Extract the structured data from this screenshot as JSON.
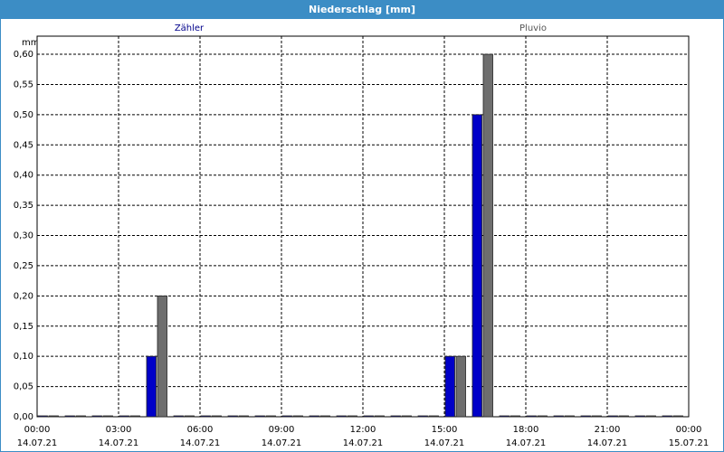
{
  "chart_data": {
    "type": "bar",
    "title": "Niederschlag [mm]",
    "y_unit": "mm",
    "x": [
      0,
      1,
      2,
      3,
      4,
      5,
      6,
      7,
      8,
      9,
      10,
      11,
      12,
      13,
      14,
      15,
      16,
      17,
      18,
      19,
      20,
      21,
      22,
      23
    ],
    "xlim": [
      0,
      24
    ],
    "xticks": [
      {
        "value": 0,
        "label": [
          "00:00",
          "14.07.21"
        ]
      },
      {
        "value": 3,
        "label": [
          "03:00",
          "14.07.21"
        ]
      },
      {
        "value": 6,
        "label": [
          "06:00",
          "14.07.21"
        ]
      },
      {
        "value": 9,
        "label": [
          "09:00",
          "14.07.21"
        ]
      },
      {
        "value": 12,
        "label": [
          "12:00",
          "14.07.21"
        ]
      },
      {
        "value": 15,
        "label": [
          "15:00",
          "14.07.21"
        ]
      },
      {
        "value": 18,
        "label": [
          "18:00",
          "14.07.21"
        ]
      },
      {
        "value": 21,
        "label": [
          "21:00",
          "14.07.21"
        ]
      },
      {
        "value": 24,
        "label": [
          "00:00",
          "15.07.21"
        ]
      }
    ],
    "ylim": [
      0,
      0.63
    ],
    "yticks": [
      {
        "value": 0,
        "label": "0,00"
      },
      {
        "value": 0.05,
        "label": "0,05"
      },
      {
        "value": 0.1,
        "label": "0,10"
      },
      {
        "value": 0.15,
        "label": "0,15"
      },
      {
        "value": 0.2,
        "label": "0,20"
      },
      {
        "value": 0.25,
        "label": "0,25"
      },
      {
        "value": 0.3,
        "label": "0,30"
      },
      {
        "value": 0.35,
        "label": "0,35"
      },
      {
        "value": 0.4,
        "label": "0,40"
      },
      {
        "value": 0.45,
        "label": "0,45"
      },
      {
        "value": 0.5,
        "label": "0,50"
      },
      {
        "value": 0.55,
        "label": "0,55"
      },
      {
        "value": 0.6,
        "label": "0,60"
      }
    ],
    "grid": true,
    "series": [
      {
        "name": "Zähler",
        "color": "#0000c8",
        "values": [
          0,
          0,
          0,
          0,
          0.1,
          0,
          0,
          0,
          0,
          0,
          0,
          0,
          0,
          0,
          0,
          0.1,
          0.5,
          0,
          0,
          0,
          0,
          0,
          0,
          0
        ]
      },
      {
        "name": "Pluvio",
        "color": "#6e6e6e",
        "values": [
          0,
          0,
          0,
          0,
          0.2,
          0,
          0,
          0,
          0,
          0,
          0,
          0,
          0,
          0,
          0,
          0.1,
          0.6,
          0,
          0,
          0,
          0,
          0,
          0,
          0
        ]
      }
    ]
  }
}
